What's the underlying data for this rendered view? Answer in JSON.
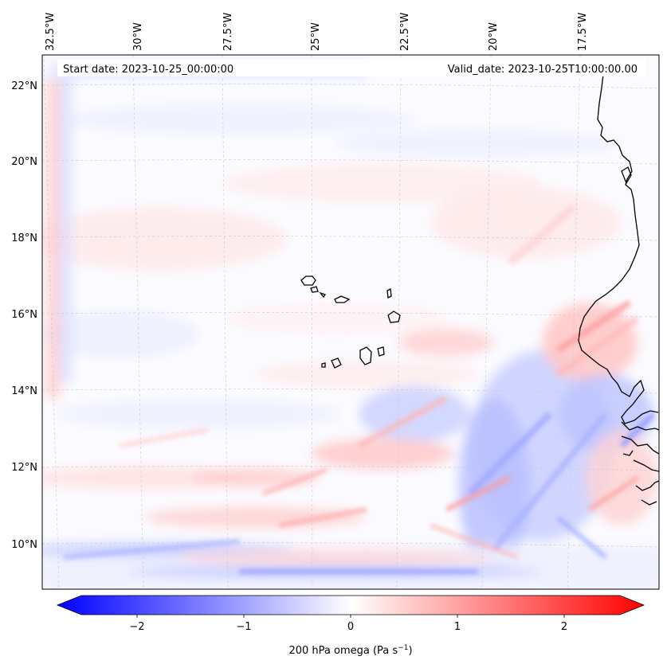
{
  "map": {
    "start_label": "Start date: 2023-10-25_00:00:00",
    "valid_label": "Valid_date: 2023-10-25T10:00:00.00",
    "lon_labels": [
      "32.5°W",
      "30°W",
      "27.5°W",
      "25°W",
      "22.5°W",
      "20°W",
      "17.5°W"
    ],
    "lat_labels": [
      "22°N",
      "20°N",
      "18°N",
      "16°N",
      "14°N",
      "12°N",
      "10°N"
    ],
    "colors": {
      "negative": "#0000ff",
      "neutral": "#ffffff",
      "positive": "#ff0000",
      "coast": "#000000"
    }
  },
  "colorbar": {
    "ticks": [
      "−2",
      "−1",
      "0",
      "1",
      "2"
    ],
    "label_main": "200 hPa omega (Pa s",
    "label_sup": "−1",
    "label_end": ")",
    "range": [
      -2.6,
      2.6
    ]
  }
}
